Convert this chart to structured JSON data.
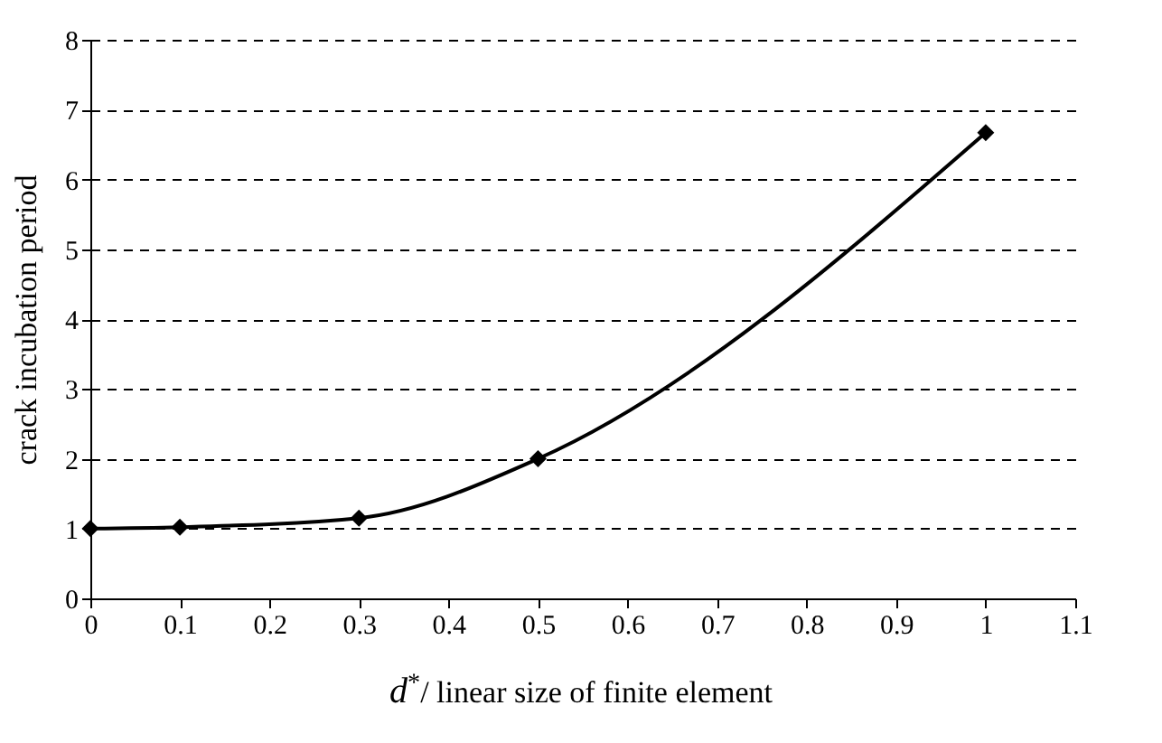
{
  "chart_data": {
    "type": "line",
    "xlabel": "d$^{*}$/ linear size of finite element",
    "ylabel": "crack incubation period",
    "x": [
      0,
      0.1,
      0.3,
      0.5,
      1
    ],
    "series": [
      {
        "color": "#000000",
        "values": [
          1,
          1.02,
          1.15,
          2,
          6.67
        ]
      }
    ],
    "xlim": [
      0,
      1.1
    ],
    "xticks": [
      0,
      0.1,
      0.2,
      0.3,
      0.4,
      0.5,
      0.6,
      0.7,
      0.8,
      0.9,
      1,
      1.1
    ],
    "ylim": [
      0,
      8
    ],
    "yticks": [
      0,
      1,
      2,
      3,
      4,
      5,
      6,
      7,
      8
    ],
    "grid": "y",
    "marker": "diamond",
    "line_style": "solid",
    "legend": false
  }
}
